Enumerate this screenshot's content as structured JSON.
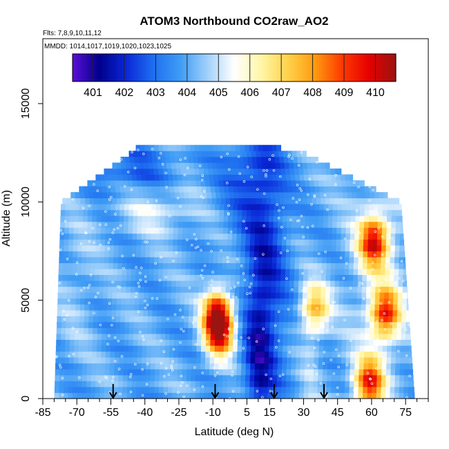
{
  "chart_data": {
    "type": "heatmap",
    "title": "ATOM3 Northbound CO2raw_AO2",
    "subtitle_flights": "Flts: 7,8,9,10,11,12",
    "subtitle_dates": "MMDD: 1014,1017,1019,1020,1023,1025",
    "xlabel": "Latitude (deg N)",
    "ylabel": "Altitude (m)",
    "xlim": [
      -85,
      85
    ],
    "ylim": [
      0,
      17500
    ],
    "x_ticks": [
      -85,
      -70,
      -55,
      -40,
      -25,
      -10,
      5,
      15,
      30,
      45,
      60,
      75
    ],
    "x_minor_ticks": [
      -80,
      -75,
      -65,
      -60,
      -50,
      -45,
      -35,
      -30,
      -20,
      -15,
      -5,
      0,
      10,
      20,
      25,
      35,
      40,
      50,
      55,
      65,
      70,
      80,
      85
    ],
    "y_ticks": [
      0,
      5000,
      10000,
      15000
    ],
    "colorbar": {
      "ticks": [
        401,
        402,
        403,
        404,
        405,
        406,
        407,
        408,
        409,
        410
      ],
      "range": [
        400.35,
        410.65
      ],
      "colors": [
        "#5b0fd6",
        "#00008b",
        "#0a28d8",
        "#1e6ff0",
        "#3f9cf5",
        "#9fd0fa",
        "#ffffff",
        "#fff6a8",
        "#ffd24a",
        "#ff9a10",
        "#ff3a00",
        "#e60000",
        "#9a1410"
      ]
    },
    "arrows_latitude": [
      -54,
      -9,
      17,
      39
    ],
    "hotspots": [
      {
        "lat": -8,
        "alt": 4300,
        "value": 409.3
      },
      {
        "lat": -7,
        "alt": 3300,
        "value": 408.5
      },
      {
        "lat": 61,
        "alt": 8000,
        "value": 409.2
      },
      {
        "lat": 66,
        "alt": 4350,
        "value": 408.8
      },
      {
        "lat": 59,
        "alt": 800,
        "value": 409.0
      },
      {
        "lat": 35,
        "alt": 4600,
        "value": 407.5
      }
    ]
  }
}
